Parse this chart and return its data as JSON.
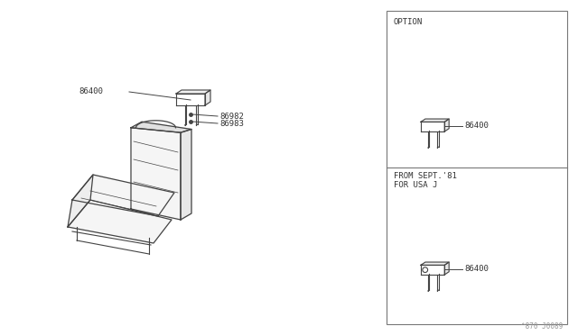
{
  "bg_color": "#ffffff",
  "border_color": "#555555",
  "line_color": "#444444",
  "text_color": "#333333",
  "fig_width": 6.4,
  "fig_height": 3.72,
  "watermark": "^870 J0089",
  "option_label": "OPTION",
  "from_label_line1": "FROM SEPT.'81",
  "from_label_line2": "FOR USA J",
  "part_86400": "86400",
  "part_86982": "86982",
  "part_86983": "86983"
}
